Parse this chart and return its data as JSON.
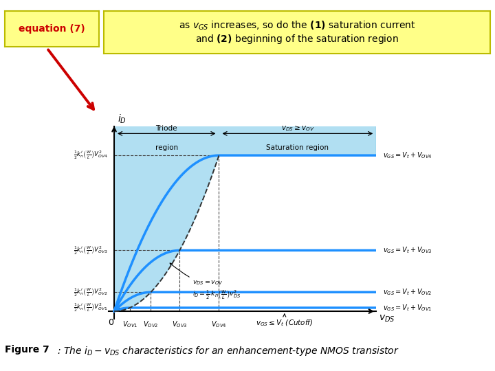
{
  "title_box_color": "#FFFF88",
  "equation_box_color": "#FFFF88",
  "fig_bg_color": "#FFFFFF",
  "sat_region_color": "#87CEEB",
  "sat_region_alpha": 0.65,
  "curve_color": "#1E90FF",
  "curve_lw": 2.5,
  "ov_values": [
    0.6,
    1.4,
    2.5,
    4.0
  ],
  "k": 0.5,
  "x_max": 10.0,
  "y_max": 9.5,
  "vov_labels": [
    "$V_{OV1}$",
    "$V_{OV2}$",
    "$V_{OV3}$",
    "$V_{OV4}$"
  ],
  "curve_labels": [
    "$v_{GS} = V_t + V_{OV1}$",
    "$v_{GS} = V_t + V_{OV2}$",
    "$v_{GS} = V_t + V_{OV3}$",
    "$v_{GS} = V_t + V_{OV4}$"
  ],
  "y_labels": [
    "$\\frac{1}{2}k_n^{\\prime}\\left(\\frac{W}{L}\\right)V_{OV1}^2$",
    "$\\frac{1}{2}k_n^{\\prime}\\left(\\frac{W}{L}\\right)V_{OV2}^2$",
    "$\\frac{1}{2}k_n^{\\prime}\\left(\\frac{W}{L}\\right)V_{OV3}^2$",
    "$\\frac{1}{2}k_n^{\\prime}\\left(\\frac{W}{L}\\right)V_{OV4}^2$"
  ],
  "triode_label1": "Triode",
  "triode_label2": "region",
  "sat_top_label": "$v_{DS} \\geq v_{OV}$",
  "sat_bot_label": "Saturation region",
  "parabola_label": "$v_{DS} = v_{OV}$\n$i_D = \\frac{1}{2}\\,k_n\\left(\\frac{W}{L}\\right)v_{DS}^2$",
  "cutoff_label": "$v_{GS} \\leq V_t$ (Cutoff)",
  "xlabel": "$v_{DS}$",
  "ylabel": "$i_D$",
  "figure_label_bold": "Figure 7",
  "figure_caption": ": The $i_D - v_{DS}$ characteristics for an enhancement-type NMOS transistor",
  "eq7_text": "equation (7)",
  "title_text": "as $v_{GS}$ increases, so do the $\\mathbf{(1)}$ saturation current\nand $\\mathbf{(2)}$ beginning of the saturation region"
}
